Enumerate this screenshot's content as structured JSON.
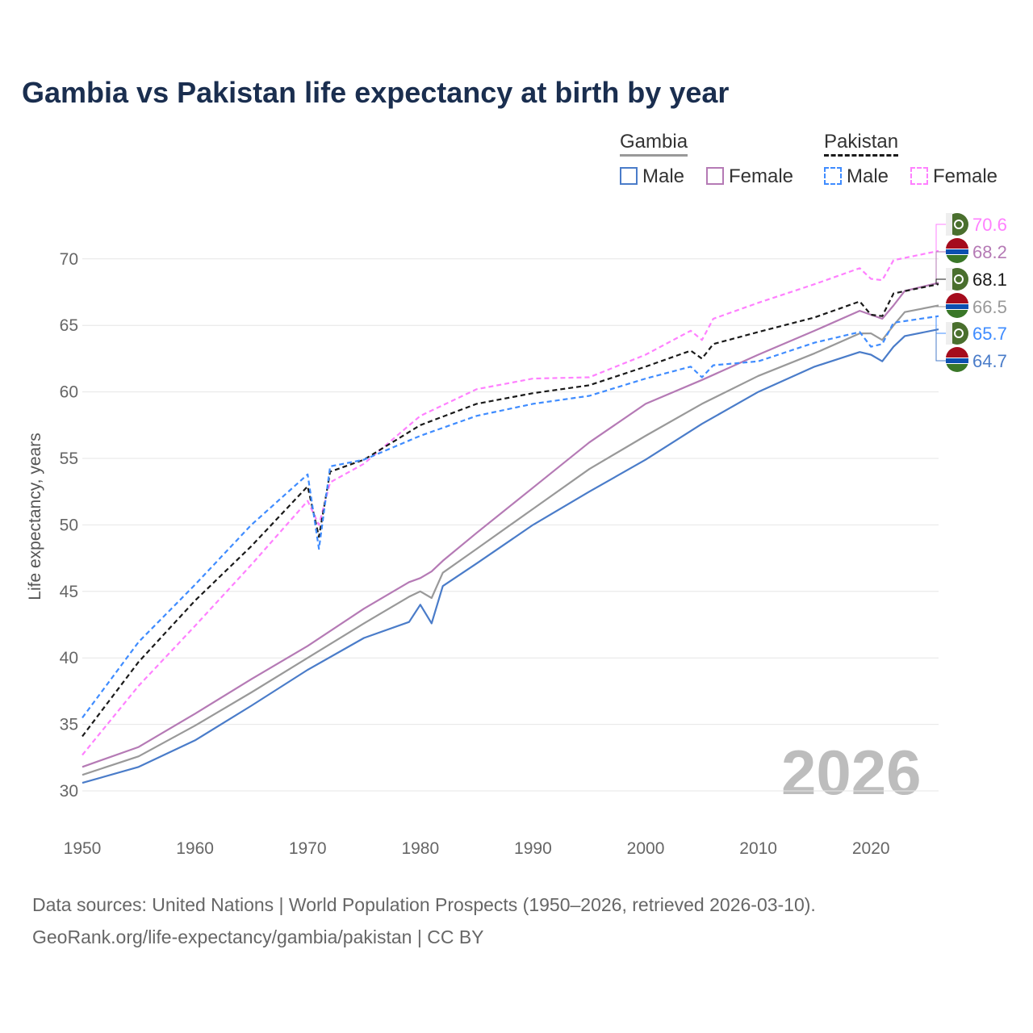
{
  "chart_data": {
    "type": "line",
    "title": "Gambia vs Pakistan life expectancy at birth by year",
    "xlabel": "",
    "ylabel": "Life expectancy, years",
    "xlim": [
      1950,
      2026
    ],
    "ylim": [
      28,
      73
    ],
    "xticks": [
      "1950",
      "1960",
      "1970",
      "1980",
      "1990",
      "2000",
      "2010",
      "2020"
    ],
    "yticks": [
      "30",
      "35",
      "40",
      "45",
      "50",
      "55",
      "60",
      "65",
      "70"
    ],
    "grid": true,
    "watermark_year": "2026",
    "legend": {
      "placement": "top-right",
      "groups": [
        {
          "name": "Gambia",
          "items": [
            "Male",
            "Female"
          ]
        },
        {
          "name": "Pakistan",
          "items": [
            "Male",
            "Female"
          ]
        }
      ]
    },
    "series": [
      {
        "name": "Pakistan Female",
        "color": "#ff80ff",
        "dashed": true,
        "flag": "pakistan",
        "end_label": "70.6",
        "x": [
          1950,
          1955,
          1960,
          1965,
          1970,
          1971,
          1972,
          1975,
          1980,
          1985,
          1990,
          1995,
          2000,
          2004,
          2005,
          2006,
          2010,
          2015,
          2019,
          2020,
          2021,
          2022,
          2026
        ],
        "y": [
          32.7,
          37.9,
          42.4,
          47.0,
          51.8,
          50.0,
          53.2,
          54.6,
          58.2,
          60.2,
          61.0,
          61.1,
          62.8,
          64.6,
          63.9,
          65.5,
          66.7,
          68.1,
          69.3,
          68.5,
          68.4,
          69.9,
          70.6
        ]
      },
      {
        "name": "Gambia Female",
        "color": "#b57ab5",
        "dashed": false,
        "flag": "gambia",
        "end_label": "68.2",
        "x": [
          1950,
          1955,
          1960,
          1965,
          1970,
          1975,
          1979,
          1980,
          1981,
          1982,
          1985,
          1990,
          1995,
          2000,
          2005,
          2010,
          2015,
          2019,
          2020,
          2021,
          2022,
          2023,
          2026
        ],
        "y": [
          31.8,
          33.3,
          35.8,
          38.4,
          40.9,
          43.7,
          45.7,
          46.0,
          46.5,
          47.3,
          49.4,
          52.8,
          56.2,
          59.1,
          60.9,
          62.8,
          64.6,
          66.1,
          65.8,
          65.5,
          66.5,
          67.6,
          68.2
        ]
      },
      {
        "name": "Pakistan",
        "color": "#1a1a1a",
        "dashed": true,
        "flag": "pakistan",
        "end_label": "68.1",
        "x": [
          1950,
          1955,
          1960,
          1965,
          1970,
          1971,
          1972,
          1975,
          1980,
          1985,
          1990,
          1995,
          2000,
          2004,
          2005,
          2006,
          2010,
          2015,
          2019,
          2020,
          2021,
          2022,
          2026
        ],
        "y": [
          34.1,
          39.7,
          44.3,
          48.4,
          52.9,
          49.1,
          54.0,
          54.9,
          57.5,
          59.1,
          59.9,
          60.5,
          61.9,
          63.1,
          62.5,
          63.6,
          64.5,
          65.6,
          66.8,
          65.8,
          65.7,
          67.4,
          68.1
        ]
      },
      {
        "name": "Gambia",
        "color": "#999999",
        "dashed": false,
        "flag": "gambia",
        "end_label": "66.5",
        "x": [
          1950,
          1955,
          1960,
          1965,
          1970,
          1975,
          1979,
          1980,
          1981,
          1982,
          1985,
          1990,
          1995,
          2000,
          2005,
          2010,
          2015,
          2019,
          2020,
          2021,
          2022,
          2023,
          2026
        ],
        "y": [
          31.2,
          32.6,
          34.9,
          37.4,
          40.0,
          42.6,
          44.6,
          45.0,
          44.5,
          46.4,
          48.2,
          51.2,
          54.2,
          56.7,
          59.1,
          61.2,
          62.9,
          64.4,
          64.4,
          63.9,
          65.0,
          66.0,
          66.5
        ]
      },
      {
        "name": "Pakistan Male",
        "color": "#3f8cff",
        "dashed": true,
        "flag": "pakistan",
        "end_label": "65.7",
        "x": [
          1950,
          1955,
          1960,
          1965,
          1970,
          1971,
          1972,
          1975,
          1980,
          1985,
          1990,
          1995,
          2000,
          2004,
          2005,
          2006,
          2010,
          2015,
          2019,
          2020,
          2021,
          2022,
          2026
        ],
        "y": [
          35.5,
          41.2,
          45.5,
          50.0,
          53.8,
          48.2,
          54.4,
          54.9,
          56.7,
          58.2,
          59.1,
          59.7,
          61.0,
          61.9,
          61.1,
          62.0,
          62.3,
          63.7,
          64.5,
          63.4,
          63.6,
          65.2,
          65.7
        ]
      },
      {
        "name": "Gambia Male",
        "color": "#4a7cc9",
        "dashed": false,
        "flag": "gambia",
        "end_label": "64.7",
        "x": [
          1950,
          1955,
          1960,
          1965,
          1970,
          1975,
          1979,
          1980,
          1981,
          1982,
          1985,
          1990,
          1995,
          2000,
          2005,
          2010,
          2015,
          2019,
          2020,
          2021,
          2022,
          2023,
          2026
        ],
        "y": [
          30.6,
          31.8,
          33.8,
          36.4,
          39.1,
          41.5,
          42.7,
          44.0,
          42.6,
          45.4,
          47.1,
          50.0,
          52.5,
          54.9,
          57.6,
          60.0,
          61.9,
          63.0,
          62.8,
          62.3,
          63.4,
          64.2,
          64.7
        ]
      }
    ]
  },
  "footer": {
    "line1": "Data sources: United Nations | World Population Prospects (1950–2026, retrieved 2026-03-10).",
    "line2": "GeoRank.org/life-expectancy/gambia/pakistan | CC BY"
  }
}
